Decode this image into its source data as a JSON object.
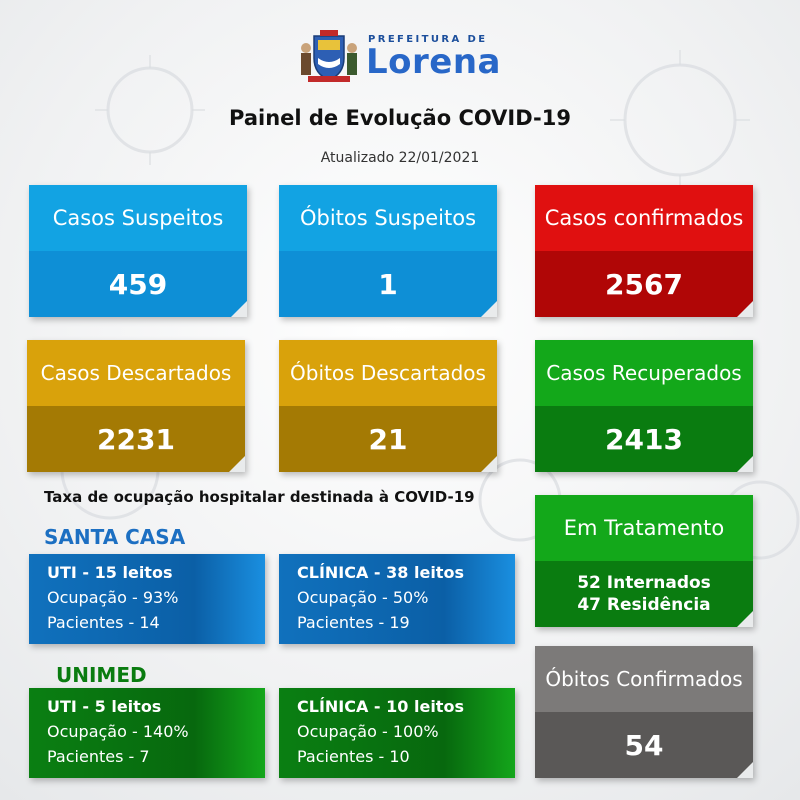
{
  "header": {
    "logo_prefix": "PREFEITURA DE",
    "logo_name": "Lorena",
    "title": "Painel de Evolução COVID-19",
    "updated": "Atualizado 22/01/2021"
  },
  "cards": {
    "casos_suspeitos": {
      "label": "Casos Suspeitos",
      "value": "459"
    },
    "obitos_suspeitos": {
      "label": "Óbitos Suspeitos",
      "value": "1"
    },
    "casos_confirmados": {
      "label": "Casos confirmados",
      "value": "2567"
    },
    "casos_descartados": {
      "label": "Casos Descartados",
      "value": "2231"
    },
    "obitos_descartados": {
      "label": "Óbitos Descartados",
      "value": "21"
    },
    "casos_recuperados": {
      "label": "Casos Recuperados",
      "value": "2413"
    },
    "em_tratamento": {
      "label": "Em Tratamento",
      "line1": "52 Internados",
      "line2": "47 Residência"
    },
    "obitos_confirmados": {
      "label": "Óbitos Confirmados",
      "value": "54"
    }
  },
  "occupancy": {
    "title": "Taxa de ocupação hospitalar destinada à COVID-19",
    "santa_casa": {
      "name": "SANTA CASA",
      "uti": {
        "title": "UTI - 15 leitos",
        "ocupacao": "Ocupação - 93%",
        "pacientes": "Pacientes - 14"
      },
      "clinica": {
        "title": "CLÍNICA - 38 leitos",
        "ocupacao": "Ocupação - 50%",
        "pacientes": "Pacientes - 19"
      }
    },
    "unimed": {
      "name": "UNIMED",
      "uti": {
        "title": "UTI - 5 leitos",
        "ocupacao": "Ocupação - 140%",
        "pacientes": "Pacientes - 7"
      },
      "clinica": {
        "title": "CLÍNICA - 10 leitos",
        "ocupacao": "Ocupação - 100%",
        "pacientes": "Pacientes - 10"
      }
    }
  },
  "colors": {
    "blue": "#12a3e3",
    "red": "#e01010",
    "gold": "#d9a20b",
    "green": "#13a81a",
    "gray": "#7c7a79",
    "santa_casa_label": "#1c6fc2",
    "unimed_label": "#0a7c10"
  },
  "icons": {
    "background": "virus-icon",
    "logo": "coat-of-arms-icon"
  }
}
